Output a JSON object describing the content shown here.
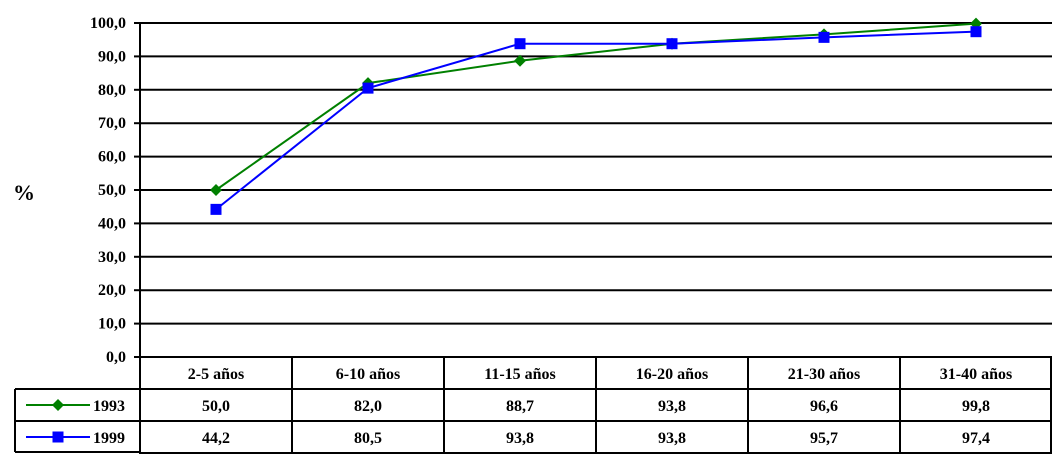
{
  "chart_data": {
    "type": "line",
    "ylabel": "%",
    "ylim": [
      0,
      100
    ],
    "yticks": [
      "0,0",
      "10,0",
      "20,0",
      "30,0",
      "40,0",
      "50,0",
      "60,0",
      "70,0",
      "80,0",
      "90,0",
      "100,0"
    ],
    "grid": true,
    "categories": [
      "2-5 años",
      "6-10 años",
      "11-15 años",
      "16-20 años",
      "21-30 años",
      "31-40 años"
    ],
    "series": [
      {
        "name": "1993",
        "color": "#008000",
        "marker": "diamond",
        "values": [
          50.0,
          82.0,
          88.7,
          93.8,
          96.6,
          99.8
        ],
        "labels": [
          "50,0",
          "82,0",
          "88,7",
          "93,8",
          "96,6",
          "99,8"
        ]
      },
      {
        "name": "1999",
        "color": "#0000ff",
        "marker": "square",
        "values": [
          44.2,
          80.5,
          93.8,
          93.8,
          95.7,
          97.4
        ],
        "labels": [
          "44,2",
          "80,5",
          "93,8",
          "93,8",
          "95,7",
          "97,4"
        ]
      }
    ],
    "legend_placement": "data-table-left"
  }
}
